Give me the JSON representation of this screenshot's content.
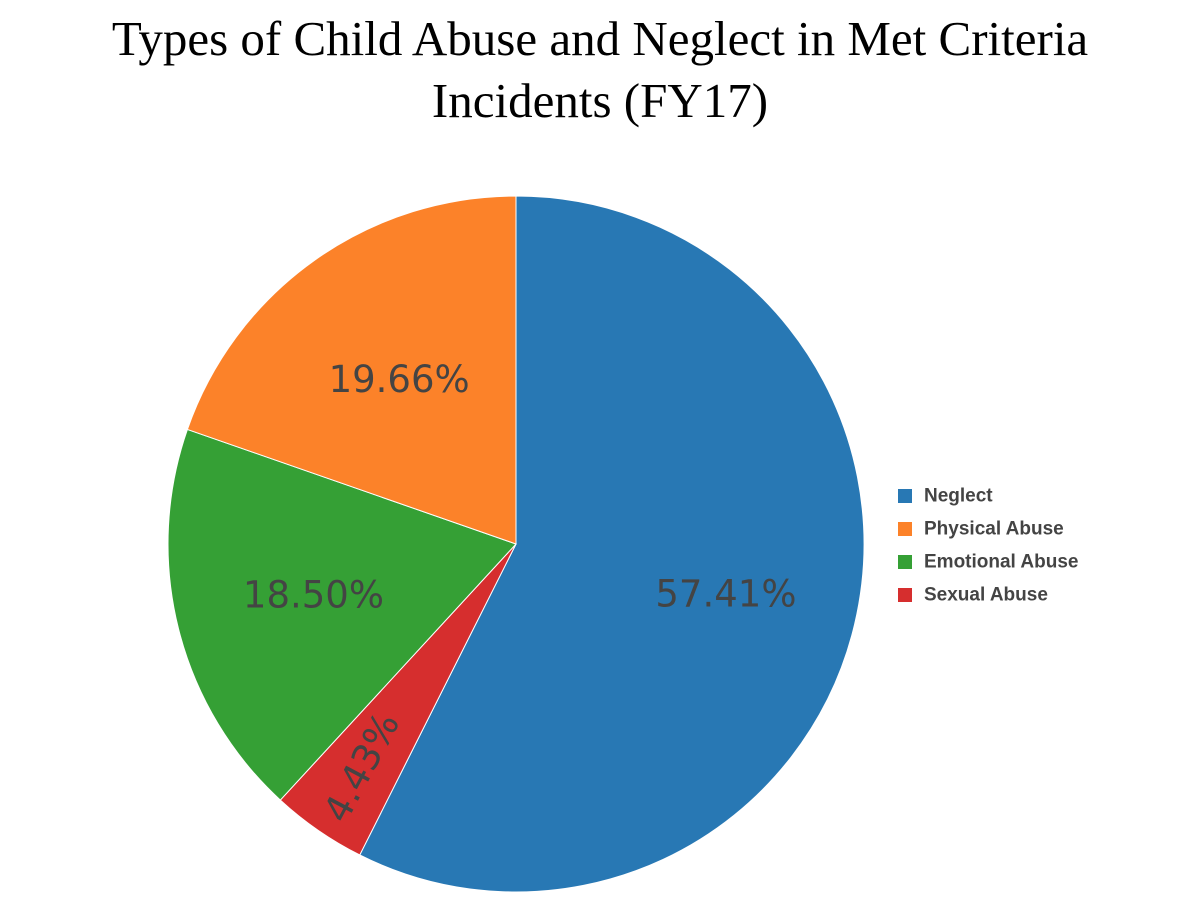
{
  "chart_data": {
    "type": "pie",
    "title_lines": [
      "Types of Child Abuse and Neglect in Met Criteria",
      "Incidents (FY17)"
    ],
    "slices": [
      {
        "name": "Neglect",
        "value": 57.41,
        "label": "57.41%",
        "color": "#2878b4"
      },
      {
        "name": "Sexual Abuse",
        "value": 4.43,
        "label": "4.43%",
        "color": "#d62e2e"
      },
      {
        "name": "Emotional Abuse",
        "value": 18.5,
        "label": "18.50%",
        "color": "#35a035"
      },
      {
        "name": "Physical Abuse",
        "value": 19.66,
        "label": "19.66%",
        "color": "#fc8229"
      }
    ],
    "legend": {
      "placement": "right",
      "entries": [
        {
          "name": "Neglect",
          "color": "#2878b4"
        },
        {
          "name": "Physical Abuse",
          "color": "#fc8229"
        },
        {
          "name": "Emotional Abuse",
          "color": "#35a035"
        },
        {
          "name": "Sexual Abuse",
          "color": "#d62e2e"
        }
      ]
    },
    "start": "top",
    "direction": "clockwise"
  }
}
